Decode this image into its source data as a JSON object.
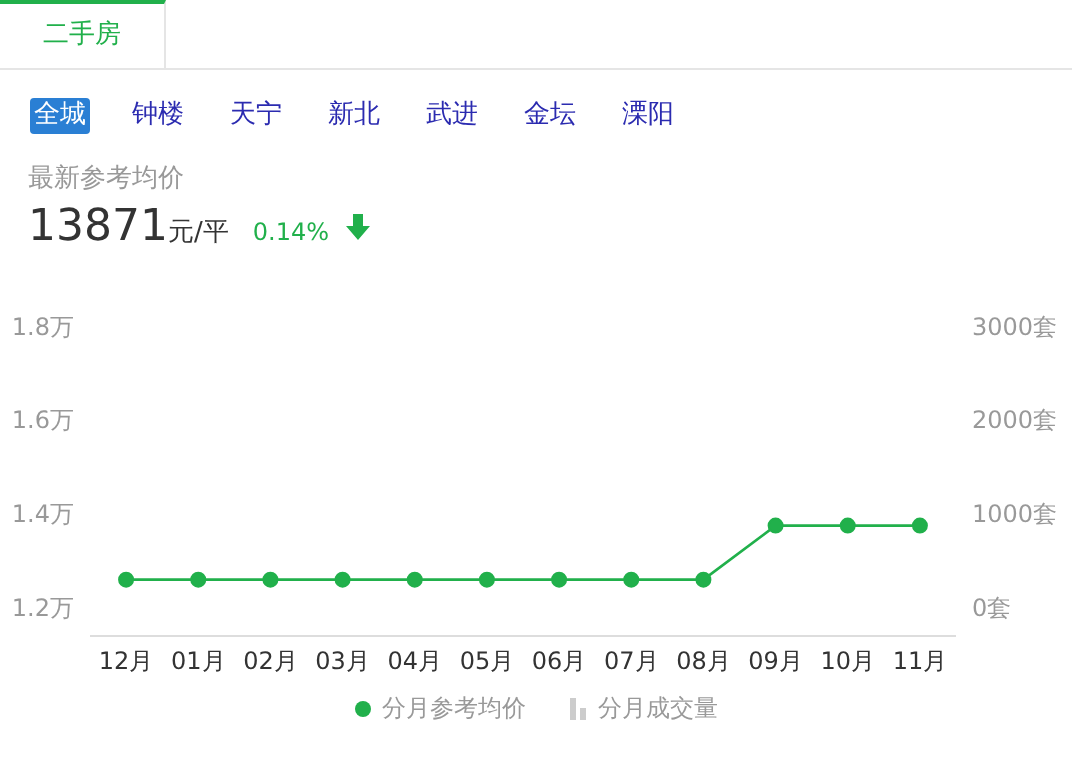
{
  "chart_data": {
    "type": "line",
    "categories": [
      "12月",
      "01月",
      "02月",
      "03月",
      "04月",
      "05月",
      "06月",
      "07月",
      "08月",
      "09月",
      "10月",
      "11月"
    ],
    "series": [
      {
        "name": "分月参考均价",
        "color": "#21b04b",
        "values": [
          1.26,
          1.26,
          1.26,
          1.26,
          1.26,
          1.26,
          1.26,
          1.26,
          1.26,
          1.375,
          1.375,
          1.375
        ]
      },
      {
        "name": "分月成交量",
        "type": "bar",
        "axis": "y2",
        "color": "#cccccc",
        "values": [
          null,
          null,
          null,
          null,
          null,
          null,
          null,
          null,
          null,
          null,
          null,
          null
        ]
      }
    ],
    "ylim": [
      1.14,
      1.8
    ],
    "yticks": [
      {
        "value": 1.2,
        "label": "1.2万"
      },
      {
        "value": 1.4,
        "label": "1.4万"
      },
      {
        "value": 1.6,
        "label": "1.6万"
      },
      {
        "value": 1.8,
        "label": "1.8万"
      }
    ],
    "y2lim": [
      -300,
      3000
    ],
    "y2ticks": [
      {
        "value": 0,
        "label": "0套"
      },
      {
        "value": 1000,
        "label": "1000套"
      },
      {
        "value": 2000,
        "label": "2000套"
      },
      {
        "value": 3000,
        "label": "3000套"
      }
    ],
    "legend": "bottom",
    "marker": "circle",
    "line_style": "solid",
    "annotations": [
      "二手房",
      "全城",
      "钟楼",
      "天宁",
      "新北",
      "武进",
      "金坛",
      "溧阳",
      "最新参考均价",
      "13871",
      "元/平",
      "0.14%"
    ]
  }
}
